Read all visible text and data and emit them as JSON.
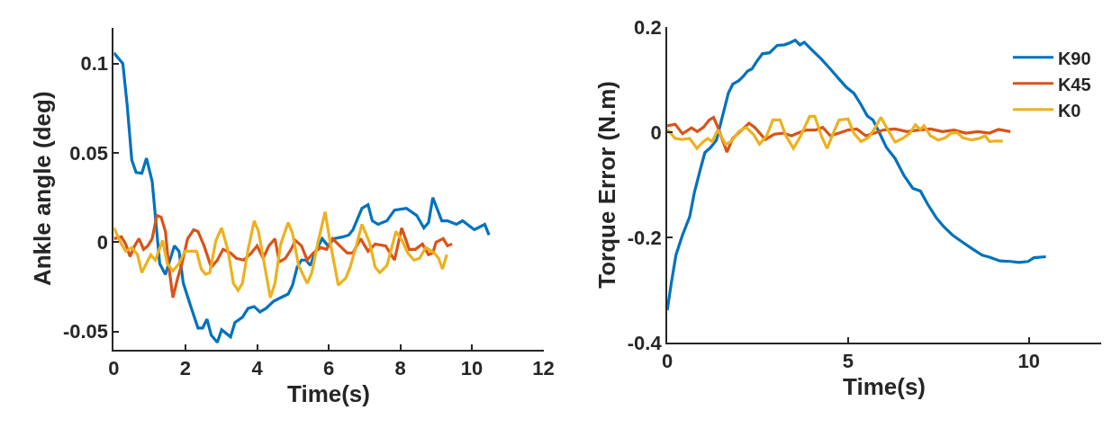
{
  "chart_data": [
    {
      "type": "line",
      "xlabel": "Time(s)",
      "ylabel": "Ankle angle (deg)",
      "xlim": [
        0,
        12
      ],
      "xticks": [
        0,
        2,
        4,
        6,
        8,
        10,
        12
      ],
      "ylim": [
        -0.06,
        0.12
      ],
      "yticks": [
        -0.05,
        0,
        0.05,
        0.1
      ],
      "series": [
        {
          "color": "#0072bd",
          "x": [
            0,
            0.25,
            0.37,
            0.5,
            0.62,
            0.78,
            0.91,
            1.07,
            1.28,
            1.44,
            1.69,
            1.82,
            1.94,
            2.15,
            2.35,
            2.48,
            2.6,
            2.72,
            2.89,
            3.01,
            3.26,
            3.38,
            3.59,
            3.75,
            3.92,
            4.08,
            4.25,
            4.46,
            4.66,
            4.87,
            4.99,
            5.12,
            5.24,
            5.36,
            5.49,
            5.61,
            5.82,
            5.98,
            6.15,
            6.4,
            6.56,
            6.68,
            6.93,
            7.1,
            7.22,
            7.38,
            7.63,
            7.84,
            8.17,
            8.46,
            8.66,
            8.79,
            8.91,
            9.16,
            9.32,
            9.57,
            9.74,
            10.07,
            10.36,
            10.48
          ],
          "values": [
            0.106,
            0.1,
            0.077,
            0.046,
            0.039,
            0.0386,
            0.047,
            0.034,
            -0.012,
            -0.018,
            -0.002,
            -0.005,
            -0.023,
            -0.036,
            -0.048,
            -0.048,
            -0.043,
            -0.052,
            -0.056,
            -0.049,
            -0.053,
            -0.045,
            -0.042,
            -0.037,
            -0.036,
            -0.039,
            -0.037,
            -0.033,
            -0.031,
            -0.029,
            -0.024,
            -0.014,
            -0.01,
            -0.01,
            -0.013,
            -0.006,
            0.002,
            -0.002,
            0.002,
            0.003,
            0.004,
            0.007,
            0.019,
            0.021,
            0.012,
            0.01,
            0.012,
            0.018,
            0.019,
            0.015,
            0.008,
            0.011,
            0.025,
            0.012,
            0.012,
            0.01,
            0.012,
            0.007,
            0.01,
            0.004
          ]
        },
        {
          "color": "#d95319",
          "x": [
            0,
            0.21,
            0.33,
            0.45,
            0.58,
            0.7,
            0.83,
            0.95,
            1.07,
            1.2,
            1.32,
            1.44,
            1.53,
            1.65,
            1.77,
            1.9,
            2.06,
            2.23,
            2.35,
            2.52,
            2.72,
            2.89,
            3.05,
            3.26,
            3.42,
            3.63,
            3.84,
            4.0,
            4.17,
            4.33,
            4.5,
            4.62,
            4.79,
            4.95,
            5.07,
            5.24,
            5.4,
            5.57,
            5.78,
            5.94,
            6.11,
            6.31,
            6.52,
            6.68,
            6.89,
            7.1,
            7.3,
            7.59,
            7.84,
            8.04,
            8.25,
            8.42,
            8.62,
            8.79,
            8.91,
            9.0,
            9.2,
            9.32,
            9.45
          ],
          "values": [
            0.002,
            0.003,
            -0.001,
            -0.008,
            -0.002,
            0.002,
            -0.004,
            -0.002,
            0.002,
            0.015,
            0.014,
            0.006,
            -0.013,
            -0.031,
            -0.021,
            -0.012,
            0.002,
            0.007,
            0.006,
            -0.002,
            -0.014,
            -0.01,
            -0.004,
            -0.006,
            -0.009,
            -0.01,
            -0.006,
            -0.002,
            -0.009,
            -0.002,
            0.002,
            -0.011,
            -0.009,
            -0.004,
            0.001,
            -0.002,
            -0.01,
            -0.006,
            -0.003,
            -0.004,
            0.002,
            -0.002,
            -0.006,
            -0.006,
            0.002,
            -0.005,
            -0.001,
            -0.002,
            -0.01,
            0.008,
            -0.004,
            -0.004,
            -0.001,
            -0.007,
            -0.006,
            0.0,
            0.002,
            -0.002,
            -0.001
          ]
        },
        {
          "color": "#edb120",
          "x": [
            0,
            0.21,
            0.33,
            0.5,
            0.66,
            0.78,
            1.03,
            1.16,
            1.36,
            1.49,
            1.65,
            1.82,
            1.98,
            2.31,
            2.44,
            2.56,
            2.68,
            2.85,
            3.01,
            3.18,
            3.34,
            3.47,
            3.59,
            3.75,
            3.92,
            4.04,
            4.21,
            4.37,
            4.5,
            4.66,
            4.87,
            4.99,
            5.16,
            5.4,
            5.53,
            5.69,
            5.9,
            6.06,
            6.27,
            6.48,
            6.6,
            6.77,
            6.93,
            7.14,
            7.3,
            7.43,
            7.63,
            7.88,
            8.05,
            8.21,
            8.38,
            8.54,
            8.71,
            8.95,
            9.07,
            9.18,
            9.3
          ],
          "values": [
            0.008,
            -0.001,
            -0.005,
            -0.003,
            -0.007,
            -0.017,
            -0.007,
            -0.01,
            0.001,
            -0.012,
            -0.016,
            -0.012,
            -0.005,
            -0.005,
            -0.015,
            -0.018,
            -0.017,
            0.001,
            0.008,
            -0.004,
            -0.023,
            -0.027,
            -0.023,
            -0.004,
            0.012,
            0.006,
            -0.013,
            -0.031,
            -0.023,
            -0.001,
            0.011,
            0.005,
            -0.013,
            -0.023,
            -0.017,
            -0.001,
            0.017,
            -0.002,
            -0.024,
            -0.02,
            -0.014,
            -0.002,
            0.01,
            0.0,
            -0.014,
            -0.017,
            -0.013,
            0.006,
            0.001,
            -0.006,
            -0.01,
            -0.009,
            -0.003,
            -0.006,
            -0.009,
            -0.015,
            -0.007
          ]
        }
      ]
    },
    {
      "type": "line",
      "xlabel": "Time(s)",
      "ylabel": "Torque Error (N.m)",
      "xlim": [
        0,
        12
      ],
      "xticks": [
        0,
        5,
        10
      ],
      "ylim": [
        -0.4,
        0.2
      ],
      "yticks": [
        -0.4,
        -0.2,
        0,
        0.2
      ],
      "legend": "top right",
      "series": [
        {
          "name": "K90",
          "color": "#0072bd",
          "x": [
            0,
            0.11,
            0.24,
            0.42,
            0.62,
            0.75,
            0.91,
            1.04,
            1.2,
            1.36,
            1.53,
            1.69,
            1.81,
            1.98,
            2.1,
            2.22,
            2.34,
            2.47,
            2.63,
            2.83,
            3.04,
            3.24,
            3.4,
            3.54,
            3.67,
            3.79,
            4.02,
            4.26,
            4.51,
            4.75,
            4.96,
            5.16,
            5.36,
            5.53,
            5.69,
            5.85,
            6.06,
            6.3,
            6.55,
            6.79,
            7.0,
            7.2,
            7.45,
            7.65,
            7.89,
            8.18,
            8.46,
            8.71,
            8.91,
            9.2,
            9.49,
            9.73,
            9.98,
            10.14,
            10.47
          ],
          "values": [
            -0.339,
            -0.288,
            -0.234,
            -0.196,
            -0.161,
            -0.115,
            -0.072,
            -0.039,
            -0.029,
            -0.015,
            0.031,
            0.074,
            0.091,
            0.098,
            0.106,
            0.116,
            0.12,
            0.134,
            0.149,
            0.151,
            0.165,
            0.166,
            0.17,
            0.175,
            0.166,
            0.171,
            0.155,
            0.139,
            0.12,
            0.101,
            0.085,
            0.074,
            0.052,
            0.031,
            0.023,
            0.001,
            -0.029,
            -0.05,
            -0.083,
            -0.107,
            -0.112,
            -0.137,
            -0.164,
            -0.18,
            -0.196,
            -0.21,
            -0.223,
            -0.234,
            -0.238,
            -0.245,
            -0.246,
            -0.248,
            -0.246,
            -0.239,
            -0.237
          ]
        },
        {
          "name": "K45",
          "color": "#d95319",
          "x": [
            0,
            0.22,
            0.42,
            0.67,
            0.83,
            1.0,
            1.16,
            1.28,
            1.4,
            1.65,
            1.81,
            2.06,
            2.26,
            2.42,
            2.71,
            2.96,
            3.2,
            3.44,
            3.61,
            3.85,
            4.1,
            4.3,
            4.51,
            4.75,
            5.0,
            5.24,
            5.49,
            5.73,
            5.98,
            6.3,
            6.63,
            6.96,
            7.28,
            7.61,
            7.93,
            8.26,
            8.59,
            8.91,
            9.16,
            9.49
          ],
          "values": [
            0.012,
            0.015,
            -0.003,
            0.008,
            0.001,
            0.009,
            0.023,
            0.028,
            0.009,
            -0.038,
            -0.012,
            0.004,
            0.017,
            0.009,
            -0.014,
            -0.004,
            -0.002,
            -0.007,
            -0.002,
            0.004,
            0.004,
            0.009,
            -0.007,
            -0.002,
            0.004,
            0.006,
            -0.007,
            -0.002,
            0.004,
            0.006,
            0.001,
            0.004,
            0.006,
            0.001,
            0.004,
            -0.002,
            0.001,
            -0.002,
            0.005,
            0.001
          ]
        },
        {
          "name": "K0",
          "color": "#edb120",
          "x": [
            0,
            0.22,
            0.42,
            0.62,
            0.82,
            1.0,
            1.12,
            1.24,
            1.4,
            1.61,
            1.77,
            1.98,
            2.18,
            2.38,
            2.55,
            2.75,
            2.92,
            3.12,
            3.28,
            3.49,
            3.69,
            3.94,
            4.08,
            4.26,
            4.42,
            4.59,
            4.75,
            5.0,
            5.16,
            5.36,
            5.57,
            5.73,
            5.91,
            6.1,
            6.3,
            6.51,
            6.71,
            6.86,
            7.0,
            7.1,
            7.28,
            7.49,
            7.69,
            7.85,
            8.02,
            8.18,
            8.42,
            8.63,
            8.79,
            8.91,
            9.08,
            9.28
          ],
          "values": [
            0.005,
            -0.012,
            -0.014,
            -0.012,
            -0.031,
            -0.018,
            -0.012,
            -0.018,
            0.004,
            -0.023,
            -0.018,
            0.001,
            0.009,
            -0.004,
            -0.023,
            -0.007,
            0.023,
            0.023,
            -0.007,
            -0.031,
            -0.007,
            0.03,
            0.03,
            -0.007,
            -0.031,
            -0.002,
            0.023,
            0.025,
            -0.002,
            -0.018,
            -0.01,
            0.006,
            0.028,
            0.004,
            -0.019,
            -0.012,
            -0.002,
            0.014,
            0.005,
            0.012,
            -0.007,
            -0.015,
            -0.011,
            -0.002,
            -0.001,
            -0.011,
            -0.015,
            -0.012,
            -0.007,
            -0.018,
            -0.017,
            -0.017
          ]
        }
      ]
    }
  ]
}
